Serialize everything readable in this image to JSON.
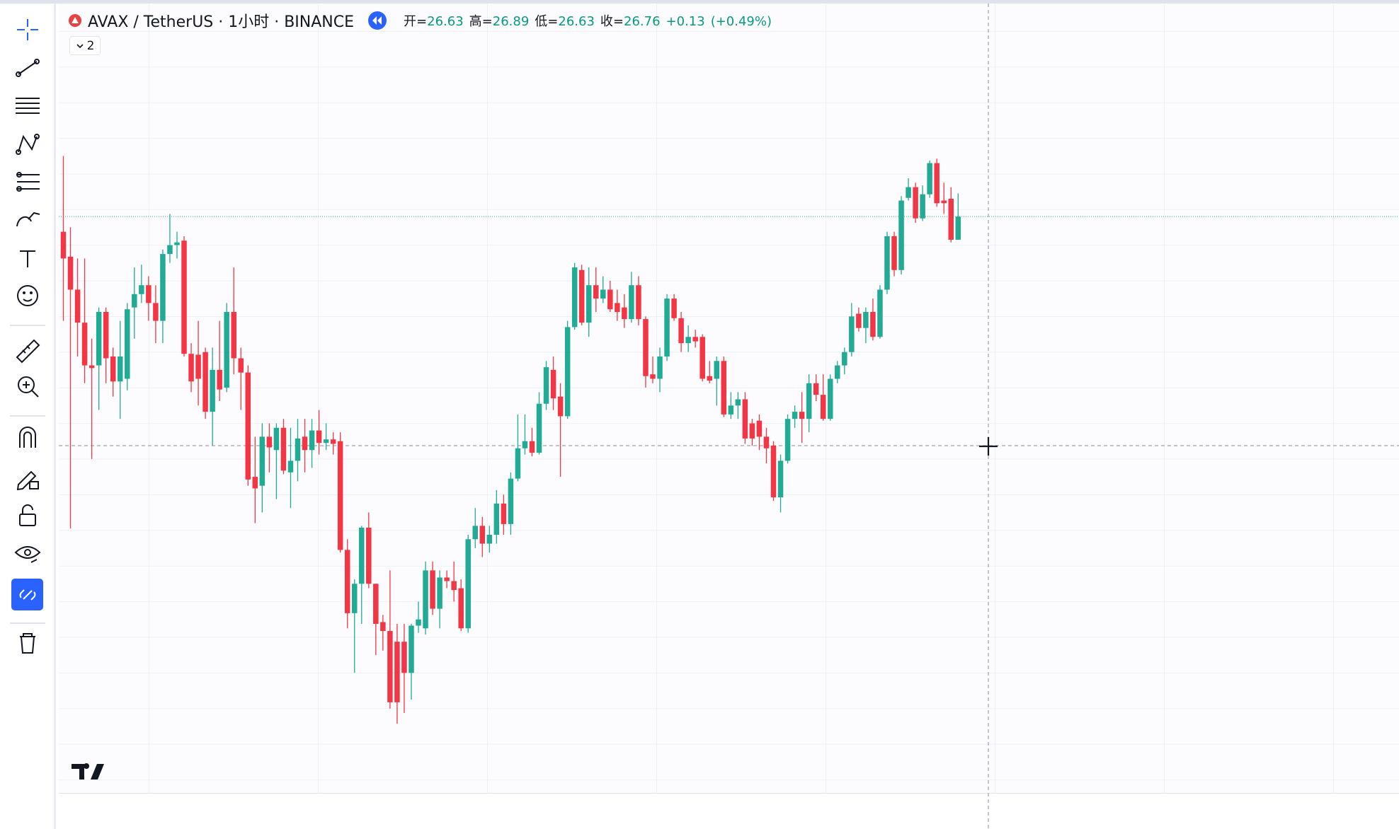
{
  "header": {
    "symbol": "AVAX / TetherUS · 1小时 · BINANCE",
    "collapse_count": "2",
    "legend": {
      "open_label": "开=",
      "open": 26.63,
      "high_label": "高=",
      "high": 26.89,
      "low_label": "低=",
      "low": 26.63,
      "close_label": "收=",
      "close": 26.76,
      "change": {
        "value": 0.13,
        "label": "+0.13"
      },
      "change_percent": {
        "value": 0.49,
        "label": "(+0.49%)"
      }
    }
  },
  "chart_data": {
    "type": "candlestick",
    "up_color": "#22ab94",
    "down_color": "#f23645",
    "ylim": [
      23.6,
      27.9
    ],
    "open": [
      26.675,
      26.535,
      26.35,
      26.165,
      25.925,
      25.925,
      26.225,
      25.975,
      25.835,
      25.85,
      26.25,
      26.325,
      26.375,
      26.275,
      26.175,
      26.55,
      26.6,
      26.625,
      25.99,
      25.985,
      26.0,
      25.665,
      25.9,
      25.8,
      26.225,
      25.965,
      25.885,
      25.3,
      25.25,
      25.525,
      25.45,
      25.575,
      25.325,
      25.39,
      25.525,
      25.45,
      25.56,
      25.49,
      25.51,
      25.5,
      24.89,
      24.535,
      24.7,
      25.015,
      24.7,
      24.485,
      24.435,
      24.375,
      24.375,
      24.2,
      24.465,
      24.45,
      24.775,
      24.56,
      24.735,
      24.715,
      24.675,
      24.45,
      24.95,
      25.025,
      24.925,
      24.975,
      25.15,
      25.035,
      25.29,
      25.46,
      25.5,
      25.435,
      25.71,
      25.9,
      25.75,
      25.64,
      26.14,
      26.46,
      26.165,
      26.375,
      26.3,
      26.35,
      26.275,
      26.25,
      26.185,
      26.375,
      26.185,
      25.875,
      25.85,
      25.975,
      26.3,
      26.19,
      26.05,
      26.085,
      26.085,
      25.865,
      25.85,
      25.95,
      25.65,
      25.7,
      25.735,
      25.6,
      25.615,
      25.525,
      25.475,
      25.185,
      25.39,
      25.625,
      25.665,
      25.625,
      25.825,
      25.76,
      25.625,
      25.85,
      25.925,
      26.0,
      26.215,
      26.135,
      26.225,
      26.085,
      26.35,
      26.65,
      26.46,
      26.865,
      26.925,
      26.75,
      26.885,
      27.06,
      26.85,
      26.86,
      26.63
    ],
    "high": [
      27.1,
      26.7,
      26.525,
      26.525,
      26.075,
      26.25,
      26.25,
      26.025,
      26.175,
      26.275,
      26.475,
      26.49,
      26.425,
      26.375,
      26.575,
      26.775,
      26.675,
      26.65,
      26.05,
      26.175,
      26.025,
      26.025,
      26.175,
      26.275,
      26.475,
      26.025,
      25.925,
      25.525,
      25.6,
      25.6,
      25.6,
      25.625,
      25.575,
      25.625,
      25.625,
      25.625,
      25.675,
      25.6,
      25.55,
      25.55,
      24.95,
      24.725,
      25.025,
      25.1,
      24.7,
      24.525,
      24.775,
      24.475,
      24.475,
      24.475,
      24.6,
      24.825,
      24.825,
      24.775,
      24.775,
      24.825,
      24.725,
      24.975,
      25.125,
      25.075,
      25.025,
      25.225,
      25.2,
      25.325,
      25.65,
      25.65,
      25.575,
      25.775,
      25.95,
      25.975,
      25.825,
      26.175,
      26.5,
      26.49,
      26.475,
      26.475,
      26.425,
      26.4,
      26.35,
      26.325,
      26.45,
      26.425,
      26.2,
      25.975,
      26.025,
      26.325,
      26.325,
      26.225,
      26.15,
      26.125,
      26.1,
      25.95,
      25.975,
      25.975,
      25.775,
      25.775,
      25.775,
      25.625,
      25.65,
      25.575,
      25.5,
      25.425,
      25.65,
      25.7,
      25.775,
      25.875,
      25.875,
      25.875,
      25.875,
      25.95,
      26.025,
      26.275,
      26.25,
      26.25,
      26.3,
      26.375,
      26.675,
      26.675,
      26.875,
      26.975,
      26.95,
      26.935,
      27.075,
      27.085,
      26.95,
      26.925,
      26.89
    ],
    "low": [
      26.175,
      25.01,
      25.975,
      25.825,
      25.4,
      25.675,
      25.825,
      25.75,
      25.625,
      25.785,
      26.075,
      26.275,
      26.175,
      26.05,
      26.05,
      26.5,
      26.525,
      25.975,
      25.775,
      25.7,
      25.625,
      25.475,
      25.725,
      25.775,
      25.875,
      25.675,
      25.25,
      25.04,
      25.1,
      25.325,
      25.175,
      25.315,
      25.125,
      25.275,
      25.325,
      25.35,
      25.425,
      25.45,
      25.425,
      24.875,
      24.45,
      24.2,
      24.475,
      24.675,
      24.3,
      24.325,
      24.0,
      23.915,
      23.975,
      24.05,
      24.425,
      24.415,
      24.525,
      24.45,
      24.675,
      24.6,
      24.435,
      24.425,
      24.9,
      24.85,
      24.875,
      24.925,
      24.975,
      24.975,
      25.275,
      25.425,
      25.415,
      25.425,
      25.675,
      25.675,
      25.3,
      25.625,
      26.125,
      26.15,
      26.085,
      26.225,
      26.275,
      26.225,
      26.175,
      26.135,
      26.165,
      26.15,
      25.8,
      25.825,
      25.775,
      25.95,
      26.175,
      26.0,
      26.0,
      26.025,
      25.835,
      25.825,
      25.7,
      25.635,
      25.625,
      25.625,
      25.485,
      25.475,
      25.45,
      25.375,
      25.165,
      25.1,
      25.375,
      25.575,
      25.49,
      25.55,
      25.725,
      25.615,
      25.615,
      25.825,
      25.875,
      25.975,
      26.115,
      26.05,
      26.065,
      26.075,
      26.325,
      26.425,
      26.435,
      26.85,
      26.725,
      26.735,
      26.865,
      26.815,
      26.775,
      26.615,
      26.63
    ],
    "close": [
      26.525,
      26.35,
      26.165,
      25.925,
      25.91,
      26.225,
      25.965,
      25.835,
      25.975,
      26.24,
      26.325,
      26.375,
      26.275,
      26.175,
      26.55,
      26.6,
      26.615,
      25.99,
      25.835,
      25.85,
      25.665,
      25.9,
      25.79,
      26.225,
      25.965,
      25.885,
      25.285,
      25.235,
      25.525,
      25.465,
      25.575,
      25.335,
      25.39,
      25.515,
      25.45,
      25.56,
      25.49,
      25.51,
      25.485,
      24.89,
      24.535,
      24.7,
      25.015,
      24.7,
      24.475,
      24.435,
      24.035,
      24.035,
      24.2,
      24.465,
      24.5,
      24.775,
      24.56,
      24.735,
      24.715,
      24.665,
      24.45,
      24.95,
      25.025,
      24.925,
      24.975,
      25.15,
      25.035,
      25.29,
      25.46,
      25.5,
      25.435,
      25.71,
      25.915,
      25.74,
      25.64,
      26.14,
      26.475,
      26.165,
      26.375,
      26.3,
      26.35,
      26.24,
      26.225,
      26.185,
      26.375,
      26.185,
      25.865,
      25.85,
      25.975,
      26.3,
      26.19,
      26.05,
      26.085,
      26.06,
      25.85,
      25.84,
      25.95,
      25.65,
      25.7,
      25.735,
      25.515,
      25.515,
      25.525,
      25.46,
      25.185,
      25.39,
      25.625,
      25.665,
      25.625,
      25.825,
      25.76,
      25.625,
      25.85,
      25.925,
      26.0,
      26.2,
      26.135,
      26.225,
      26.085,
      26.35,
      26.65,
      26.46,
      26.85,
      26.925,
      26.75,
      26.885,
      27.06,
      26.835,
      26.835,
      26.63,
      26.76
    ]
  }
}
